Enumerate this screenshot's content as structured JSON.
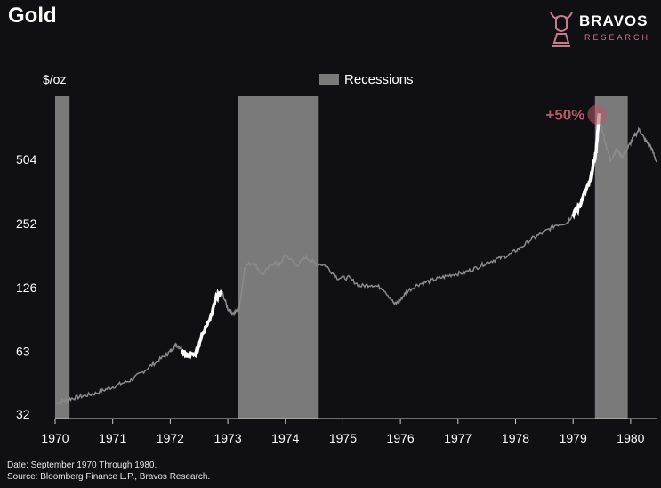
{
  "header": {
    "title": "Gold",
    "brand_name": "BRAVOS",
    "brand_sub": "RESEARCH"
  },
  "footer": {
    "line1": "Date: September 1970 Through 1980.",
    "line2": "Source: Bloomberg Finance L.P., Bravos Research."
  },
  "colors": {
    "background": "#0f0f14",
    "line": "#8a8a8a",
    "highlight": "#ffffff",
    "recession": "#7a7a7a",
    "annotation": "#b85a64"
  },
  "chart_data": {
    "type": "line",
    "title": "Gold",
    "ylabel": "$/oz",
    "yscale": "log2",
    "yticks": [
      32,
      63,
      126,
      252,
      504
    ],
    "ylim": [
      32,
      1000
    ],
    "xticks": [
      "1970",
      "1971",
      "1972",
      "1973",
      "1974",
      "1975",
      "1976",
      "1977",
      "1978",
      "1979",
      "1980"
    ],
    "xlim": [
      1970.0,
      1980.45
    ],
    "legend": {
      "position": "top-center",
      "entries": [
        "Recessions"
      ]
    },
    "recessions": [
      {
        "start": 1970.0,
        "end": 1970.25
      },
      {
        "start": 1973.17,
        "end": 1974.58
      },
      {
        "start": 1979.38,
        "end": 1979.95
      }
    ],
    "annotation": {
      "text": "+50%",
      "x": 1979.42,
      "y": 820
    },
    "series": [
      {
        "x": [
          1970.0,
          1970.15,
          1970.3,
          1970.5,
          1970.7,
          1970.9,
          1971.1,
          1971.3,
          1971.5,
          1971.7,
          1971.9,
          1972.0,
          1972.1,
          1972.2,
          1972.3,
          1972.45,
          1972.55,
          1972.7,
          1972.8,
          1972.9,
          1973.0,
          1973.1,
          1973.2,
          1973.3,
          1973.45,
          1973.6,
          1973.8,
          1973.9,
          1974.0,
          1974.2,
          1974.35,
          1974.5,
          1974.7,
          1974.9,
          1975.1,
          1975.3,
          1975.5,
          1975.7,
          1975.9,
          1976.0,
          1976.1,
          1976.3,
          1976.5,
          1976.7,
          1976.9,
          1977.1,
          1977.3,
          1977.5,
          1977.7,
          1977.9,
          1978.1,
          1978.3,
          1978.5,
          1978.7,
          1978.9,
          1979.0,
          1979.1,
          1979.2,
          1979.3,
          1979.4,
          1979.45,
          1979.55,
          1979.65,
          1979.75,
          1979.85,
          1979.95,
          1980.05,
          1980.15,
          1980.25,
          1980.35,
          1980.45
        ],
        "y": [
          36,
          37,
          38,
          39,
          40,
          42,
          44,
          46,
          50,
          55,
          60,
          63,
          68,
          65,
          60,
          62,
          75,
          90,
          113,
          120,
          100,
          95,
          100,
          160,
          165,
          145,
          165,
          160,
          180,
          160,
          175,
          165,
          160,
          140,
          140,
          128,
          130,
          125,
          105,
          110,
          120,
          130,
          135,
          140,
          145,
          148,
          155,
          165,
          172,
          180,
          195,
          215,
          230,
          248,
          255,
          280,
          300,
          350,
          400,
          550,
          820,
          620,
          500,
          560,
          520,
          570,
          640,
          700,
          620,
          580,
          490
        ]
      }
    ],
    "highlights": [
      {
        "start": 1972.2,
        "end": 1972.9
      },
      {
        "start": 1979.0,
        "end": 1979.45
      }
    ]
  }
}
